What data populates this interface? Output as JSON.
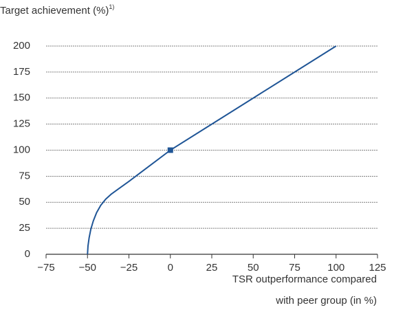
{
  "chart_data": {
    "type": "line",
    "y_label": "Target achievement (%)",
    "y_label_note": "1)",
    "x_label": [
      "TSR outperformance compared",
      "with peer group (in %)"
    ],
    "x": [
      -50,
      -49.7,
      -49,
      -48,
      -46.5,
      -44.5,
      -42,
      -39,
      -35.5,
      -32,
      -25,
      -20,
      -10,
      0,
      25,
      50,
      75,
      100
    ],
    "series": [
      {
        "name": "Target achievement",
        "color": "#1f5596",
        "values": [
          0,
          8,
          16,
          24,
          32,
          40,
          47,
          53,
          58,
          62,
          70,
          76,
          88,
          100,
          125,
          150,
          175,
          200
        ]
      }
    ],
    "highlight": {
      "x": 0,
      "y": 100
    },
    "xlim": [
      -75,
      125
    ],
    "xticks": [
      {
        "value": -75,
        "label": "−75"
      },
      {
        "value": -50,
        "label": "−50"
      },
      {
        "value": -25,
        "label": "−25"
      },
      0,
      25,
      50,
      75,
      100,
      125
    ],
    "ylim": [
      0,
      200
    ],
    "yticks": [
      0,
      25,
      50,
      75,
      100,
      125,
      150,
      175,
      200
    ],
    "grid": true
  }
}
